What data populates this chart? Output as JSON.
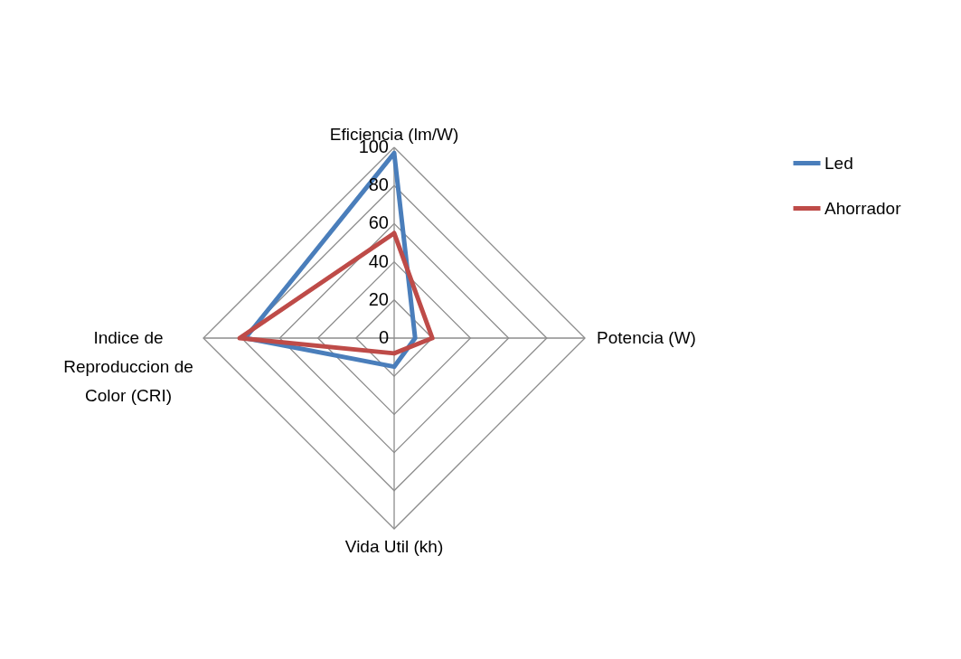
{
  "chart_data": {
    "type": "radar",
    "categories": [
      "Eficiencia (lm/W)",
      "Potencia (W)",
      "Vida Util (kh)",
      "Indice de Reproduccion de Color (CRI)"
    ],
    "series": [
      {
        "name": "Led",
        "color": "#4a7ebb",
        "values": [
          97,
          11,
          15,
          78
        ]
      },
      {
        "name": "Ahorrador",
        "color": "#be4b48",
        "values": [
          55,
          20,
          8,
          81
        ]
      }
    ],
    "ylim": [
      0,
      100
    ],
    "yticks": [
      0,
      20,
      40,
      60,
      80,
      100
    ],
    "grid": true,
    "legend": "right"
  }
}
